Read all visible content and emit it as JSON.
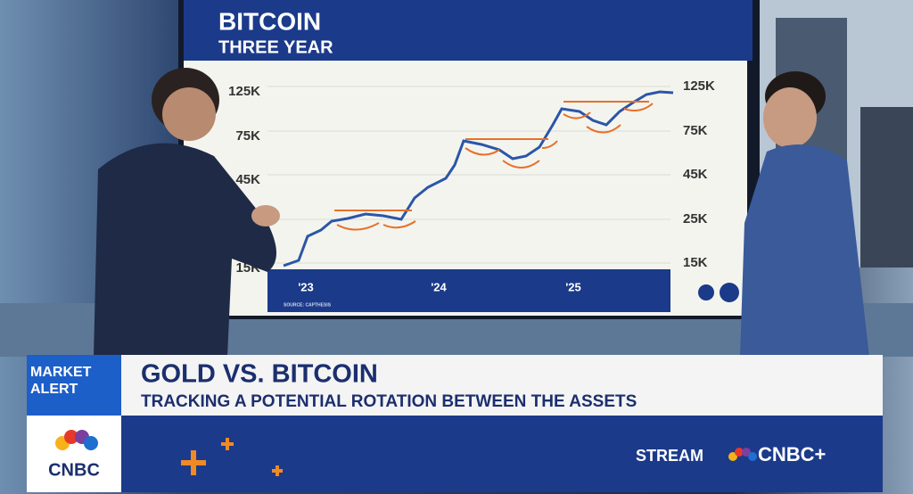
{
  "screen": {
    "title": "BITCOIN",
    "subtitle": "THREE YEAR",
    "y_labels": [
      "125K",
      "75K",
      "45K",
      "25K",
      "15K"
    ],
    "x_labels": [
      "'23",
      "'24",
      "'25"
    ],
    "source": "SOURCE: CAPTHESIS"
  },
  "lower_third": {
    "tag": "MARKET ALERT",
    "headline": "GOLD VS. BITCOIN",
    "subhead": "TRACKING A POTENTIAL ROTATION BETWEEN THE ASSETS",
    "network": "CNBC",
    "stream": "STREAM",
    "stream_brand": "CNBC+"
  }
}
